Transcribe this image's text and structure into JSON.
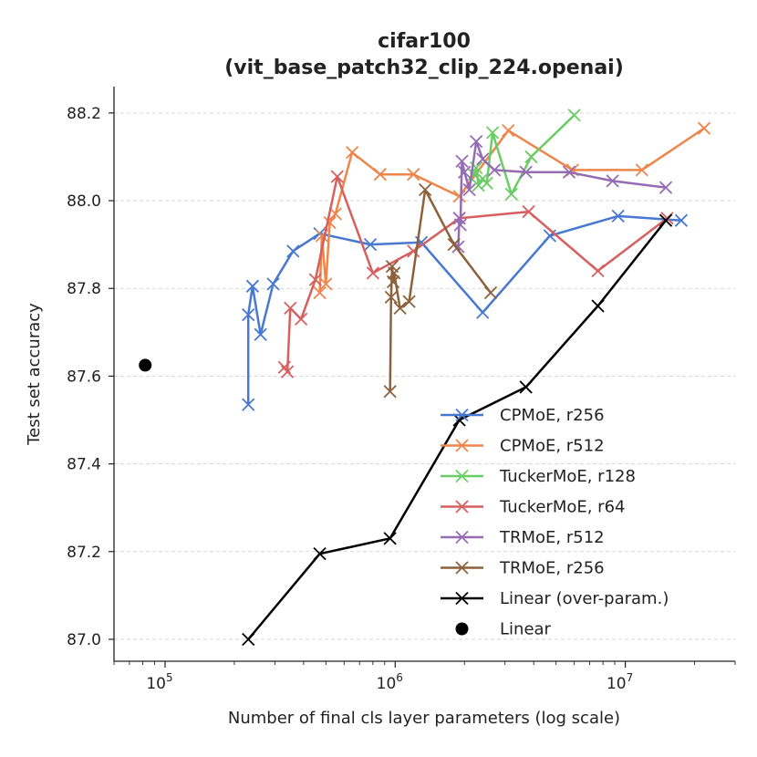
{
  "chart_data": {
    "type": "line",
    "title": "cifar100",
    "subtitle": "(vit_base_patch32_clip_224.openai)",
    "xlabel": "Number of final cls layer parameters (log scale)",
    "ylabel": "Test set accuracy",
    "xscale": "log",
    "xlim": [
      60000,
      30000000
    ],
    "ylim": [
      86.95,
      88.26
    ],
    "xticks": [
      {
        "value": 100000,
        "base": "10",
        "exp": "5"
      },
      {
        "value": 1000000,
        "base": "10",
        "exp": "6"
      },
      {
        "value": 10000000,
        "base": "10",
        "exp": "7"
      }
    ],
    "yticks": [
      {
        "value": 87.0,
        "label": "87.0"
      },
      {
        "value": 87.2,
        "label": "87.2"
      },
      {
        "value": 87.4,
        "label": "87.4"
      },
      {
        "value": 87.6,
        "label": "87.6"
      },
      {
        "value": 87.8,
        "label": "87.8"
      },
      {
        "value": 88.0,
        "label": "88.0"
      },
      {
        "value": 88.2,
        "label": "88.2"
      }
    ],
    "grid": "y-dashed",
    "legend_position": "lower-right",
    "series": [
      {
        "name": "CPMoE, r256",
        "color": "#4878d0",
        "marker": "x",
        "x": [
          230000,
          230000,
          240000,
          260000,
          295000,
          360000,
          470000,
          780000,
          1300000,
          2400000,
          4700000,
          9300000,
          17500000
        ],
        "y": [
          87.535,
          87.74,
          87.805,
          87.695,
          87.81,
          87.885,
          87.925,
          87.9,
          87.905,
          87.745,
          87.92,
          87.965,
          87.955
        ]
      },
      {
        "name": "CPMoE, r512",
        "color": "#ee854a",
        "marker": "x",
        "x": [
          470000,
          480000,
          500000,
          520000,
          550000,
          650000,
          860000,
          1200000,
          1900000,
          3100000,
          5900000,
          11800000,
          22000000
        ],
        "y": [
          87.79,
          87.92,
          87.81,
          87.95,
          87.97,
          88.11,
          88.06,
          88.06,
          88.01,
          88.16,
          88.07,
          88.07,
          88.165
        ]
      },
      {
        "name": "TuckerMoE, r128",
        "color": "#6acc64",
        "marker": "x",
        "x": [
          2200000,
          2250000,
          2300000,
          2400000,
          2500000,
          2650000,
          3200000,
          3900000,
          6000000
        ],
        "y": [
          88.06,
          88.075,
          88.035,
          88.05,
          88.04,
          88.155,
          88.015,
          88.1,
          88.195
        ]
      },
      {
        "name": "TuckerMoE, r64",
        "color": "#d65f5f",
        "marker": "x",
        "x": [
          330000,
          340000,
          350000,
          390000,
          450000,
          560000,
          800000,
          1200000,
          1900000,
          3800000,
          7600000,
          15200000
        ],
        "y": [
          87.62,
          87.61,
          87.755,
          87.73,
          87.82,
          88.055,
          87.835,
          87.885,
          87.96,
          87.975,
          87.84,
          87.96
        ]
      },
      {
        "name": "TRMoE, r512",
        "color": "#956cb4",
        "marker": "x",
        "x": [
          1880000,
          1900000,
          1920000,
          1950000,
          2000000,
          2100000,
          2250000,
          2400000,
          2700000,
          3700000,
          5700000,
          8800000,
          15000000
        ],
        "y": [
          87.895,
          87.96,
          87.945,
          88.09,
          88.065,
          88.025,
          88.135,
          88.095,
          88.07,
          88.065,
          88.065,
          88.045,
          88.03
        ]
      },
      {
        "name": "TRMoE, r256",
        "color": "#8c613c",
        "marker": "x",
        "x": [
          950000,
          960000,
          970000,
          980000,
          990000,
          1050000,
          1150000,
          1350000,
          1800000,
          2600000
        ],
        "y": [
          87.565,
          87.78,
          87.85,
          87.815,
          87.835,
          87.755,
          87.77,
          88.025,
          87.9,
          87.79
        ]
      },
      {
        "name": "Linear (over-param.)",
        "color": "#000000",
        "marker": "x",
        "x": [
          230000,
          470000,
          950000,
          1900000,
          3700000,
          7600000,
          15000000
        ],
        "y": [
          87.0,
          87.195,
          87.23,
          87.5,
          87.575,
          87.76,
          87.955
        ]
      },
      {
        "name": "Linear",
        "color": "#000000",
        "marker": "o",
        "x": [
          82000
        ],
        "y": [
          87.625
        ]
      }
    ]
  }
}
